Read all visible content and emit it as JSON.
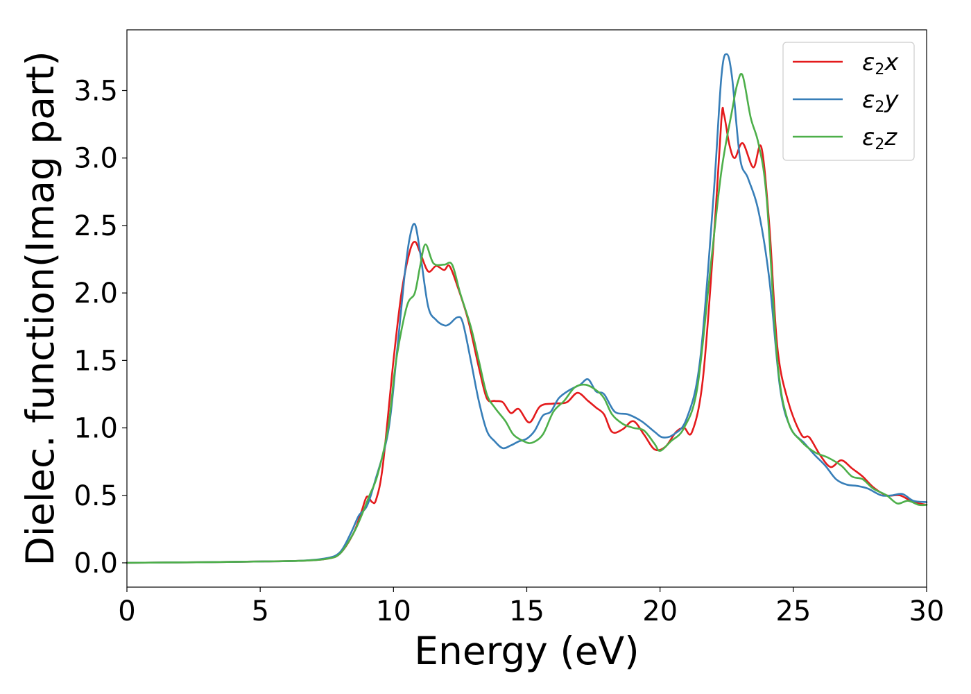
{
  "chart_data": {
    "type": "line",
    "xlabel": "Energy (eV)",
    "ylabel": "Dielec. function(Imag part)",
    "xlim": [
      0,
      30
    ],
    "ylim": [
      -0.18,
      3.95
    ],
    "x_ticks": [
      "0",
      "5",
      "10",
      "15",
      "20",
      "25",
      "30"
    ],
    "y_ticks": [
      "0.0",
      "0.5",
      "1.0",
      "1.5",
      "2.0",
      "2.5",
      "3.0",
      "3.5"
    ],
    "grid": false,
    "legend_position": "top-right",
    "series": [
      {
        "name": "ε2x",
        "name_parts": {
          "base": "ε",
          "sub": "2",
          "axis": "x"
        },
        "color": "#e41a1c",
        "points": [
          [
            0,
            0.0
          ],
          [
            3,
            0.005
          ],
          [
            5,
            0.01
          ],
          [
            6.5,
            0.015
          ],
          [
            7.5,
            0.03
          ],
          [
            8,
            0.07
          ],
          [
            8.5,
            0.22
          ],
          [
            8.8,
            0.38
          ],
          [
            9.0,
            0.49
          ],
          [
            9.2,
            0.45
          ],
          [
            9.35,
            0.47
          ],
          [
            9.6,
            0.72
          ],
          [
            10.0,
            1.5
          ],
          [
            10.3,
            2.0
          ],
          [
            10.6,
            2.3
          ],
          [
            10.8,
            2.38
          ],
          [
            11.0,
            2.3
          ],
          [
            11.3,
            2.16
          ],
          [
            11.6,
            2.2
          ],
          [
            11.9,
            2.17
          ],
          [
            12.1,
            2.2
          ],
          [
            12.4,
            2.05
          ],
          [
            12.8,
            1.8
          ],
          [
            13.2,
            1.45
          ],
          [
            13.5,
            1.22
          ],
          [
            13.8,
            1.2
          ],
          [
            14.1,
            1.19
          ],
          [
            14.4,
            1.11
          ],
          [
            14.7,
            1.14
          ],
          [
            15.1,
            1.04
          ],
          [
            15.5,
            1.16
          ],
          [
            16.0,
            1.18
          ],
          [
            16.5,
            1.19
          ],
          [
            16.9,
            1.26
          ],
          [
            17.3,
            1.2
          ],
          [
            17.6,
            1.15
          ],
          [
            17.9,
            1.1
          ],
          [
            18.2,
            0.97
          ],
          [
            18.6,
            0.99
          ],
          [
            19.0,
            1.05
          ],
          [
            19.4,
            0.95
          ],
          [
            19.8,
            0.84
          ],
          [
            20.2,
            0.86
          ],
          [
            20.6,
            0.97
          ],
          [
            20.9,
            1.0
          ],
          [
            21.2,
            0.97
          ],
          [
            21.6,
            1.35
          ],
          [
            22.0,
            2.35
          ],
          [
            22.3,
            3.28
          ],
          [
            22.4,
            3.32
          ],
          [
            22.6,
            3.1
          ],
          [
            22.8,
            3.0
          ],
          [
            23.1,
            3.11
          ],
          [
            23.5,
            2.93
          ],
          [
            23.8,
            3.08
          ],
          [
            24.1,
            2.5
          ],
          [
            24.4,
            1.6
          ],
          [
            24.8,
            1.2
          ],
          [
            25.3,
            0.95
          ],
          [
            25.6,
            0.93
          ],
          [
            26.0,
            0.8
          ],
          [
            26.4,
            0.71
          ],
          [
            26.8,
            0.76
          ],
          [
            27.2,
            0.7
          ],
          [
            27.6,
            0.64
          ],
          [
            28.0,
            0.56
          ],
          [
            28.5,
            0.5
          ],
          [
            29.0,
            0.5
          ],
          [
            29.5,
            0.45
          ],
          [
            30.0,
            0.43
          ]
        ]
      },
      {
        "name": "ε2y",
        "name_parts": {
          "base": "ε",
          "sub": "2",
          "axis": "y"
        },
        "color": "#377eb8",
        "points": [
          [
            0,
            0.0
          ],
          [
            3,
            0.005
          ],
          [
            5,
            0.01
          ],
          [
            6.5,
            0.015
          ],
          [
            7.5,
            0.035
          ],
          [
            8,
            0.08
          ],
          [
            8.4,
            0.22
          ],
          [
            8.7,
            0.35
          ],
          [
            9.0,
            0.42
          ],
          [
            9.3,
            0.6
          ],
          [
            9.8,
            0.97
          ],
          [
            10.1,
            1.5
          ],
          [
            10.4,
            2.1
          ],
          [
            10.6,
            2.4
          ],
          [
            10.8,
            2.51
          ],
          [
            11.0,
            2.3
          ],
          [
            11.3,
            1.9
          ],
          [
            11.6,
            1.8
          ],
          [
            11.9,
            1.76
          ],
          [
            12.1,
            1.77
          ],
          [
            12.4,
            1.82
          ],
          [
            12.6,
            1.78
          ],
          [
            12.9,
            1.5
          ],
          [
            13.2,
            1.2
          ],
          [
            13.5,
            0.98
          ],
          [
            13.8,
            0.9
          ],
          [
            14.1,
            0.85
          ],
          [
            14.4,
            0.87
          ],
          [
            14.7,
            0.9
          ],
          [
            15.0,
            0.92
          ],
          [
            15.3,
            0.98
          ],
          [
            15.6,
            1.09
          ],
          [
            15.9,
            1.12
          ],
          [
            16.2,
            1.22
          ],
          [
            16.6,
            1.28
          ],
          [
            17.0,
            1.32
          ],
          [
            17.3,
            1.36
          ],
          [
            17.6,
            1.27
          ],
          [
            17.9,
            1.25
          ],
          [
            18.3,
            1.12
          ],
          [
            18.8,
            1.1
          ],
          [
            19.3,
            1.05
          ],
          [
            19.8,
            0.97
          ],
          [
            20.1,
            0.93
          ],
          [
            20.5,
            0.95
          ],
          [
            21.0,
            1.07
          ],
          [
            21.5,
            1.5
          ],
          [
            22.0,
            2.7
          ],
          [
            22.3,
            3.6
          ],
          [
            22.5,
            3.77
          ],
          [
            22.7,
            3.6
          ],
          [
            23.0,
            3.0
          ],
          [
            23.3,
            2.85
          ],
          [
            23.7,
            2.6
          ],
          [
            24.1,
            2.1
          ],
          [
            24.5,
            1.3
          ],
          [
            24.9,
            1.0
          ],
          [
            25.4,
            0.89
          ],
          [
            25.8,
            0.8
          ],
          [
            26.2,
            0.72
          ],
          [
            26.6,
            0.62
          ],
          [
            27.0,
            0.58
          ],
          [
            27.4,
            0.57
          ],
          [
            27.8,
            0.55
          ],
          [
            28.3,
            0.5
          ],
          [
            28.7,
            0.5
          ],
          [
            29.1,
            0.51
          ],
          [
            29.5,
            0.46
          ],
          [
            30.0,
            0.45
          ]
        ]
      },
      {
        "name": "ε2z",
        "name_parts": {
          "base": "ε",
          "sub": "2",
          "axis": "z"
        },
        "color": "#4daf4a",
        "points": [
          [
            0,
            0.0
          ],
          [
            3,
            0.005
          ],
          [
            5,
            0.01
          ],
          [
            6.5,
            0.015
          ],
          [
            7.5,
            0.03
          ],
          [
            8,
            0.07
          ],
          [
            8.5,
            0.22
          ],
          [
            8.8,
            0.35
          ],
          [
            9.1,
            0.5
          ],
          [
            9.4,
            0.65
          ],
          [
            9.8,
            1.0
          ],
          [
            10.1,
            1.5
          ],
          [
            10.5,
            1.9
          ],
          [
            10.8,
            2.0
          ],
          [
            11.0,
            2.2
          ],
          [
            11.2,
            2.36
          ],
          [
            11.5,
            2.22
          ],
          [
            11.9,
            2.21
          ],
          [
            12.2,
            2.21
          ],
          [
            12.5,
            2.0
          ],
          [
            12.9,
            1.75
          ],
          [
            13.2,
            1.5
          ],
          [
            13.5,
            1.25
          ],
          [
            13.8,
            1.15
          ],
          [
            14.2,
            1.05
          ],
          [
            14.5,
            0.95
          ],
          [
            14.9,
            0.9
          ],
          [
            15.2,
            0.89
          ],
          [
            15.6,
            0.95
          ],
          [
            16.0,
            1.12
          ],
          [
            16.4,
            1.2
          ],
          [
            16.8,
            1.3
          ],
          [
            17.2,
            1.32
          ],
          [
            17.6,
            1.28
          ],
          [
            17.9,
            1.22
          ],
          [
            18.2,
            1.1
          ],
          [
            18.6,
            1.03
          ],
          [
            19.0,
            1.0
          ],
          [
            19.4,
            0.98
          ],
          [
            19.8,
            0.88
          ],
          [
            20.0,
            0.83
          ],
          [
            20.4,
            0.9
          ],
          [
            20.9,
            1.0
          ],
          [
            21.4,
            1.3
          ],
          [
            21.9,
            2.2
          ],
          [
            22.3,
            2.9
          ],
          [
            22.7,
            3.35
          ],
          [
            22.9,
            3.55
          ],
          [
            23.1,
            3.61
          ],
          [
            23.4,
            3.3
          ],
          [
            23.7,
            3.1
          ],
          [
            24.0,
            2.7
          ],
          [
            24.4,
            1.5
          ],
          [
            24.8,
            1.05
          ],
          [
            25.3,
            0.9
          ],
          [
            25.8,
            0.82
          ],
          [
            26.3,
            0.78
          ],
          [
            26.8,
            0.72
          ],
          [
            27.2,
            0.64
          ],
          [
            27.6,
            0.62
          ],
          [
            28.0,
            0.55
          ],
          [
            28.5,
            0.5
          ],
          [
            28.9,
            0.44
          ],
          [
            29.3,
            0.46
          ],
          [
            29.7,
            0.43
          ],
          [
            30.0,
            0.43
          ]
        ]
      }
    ]
  }
}
